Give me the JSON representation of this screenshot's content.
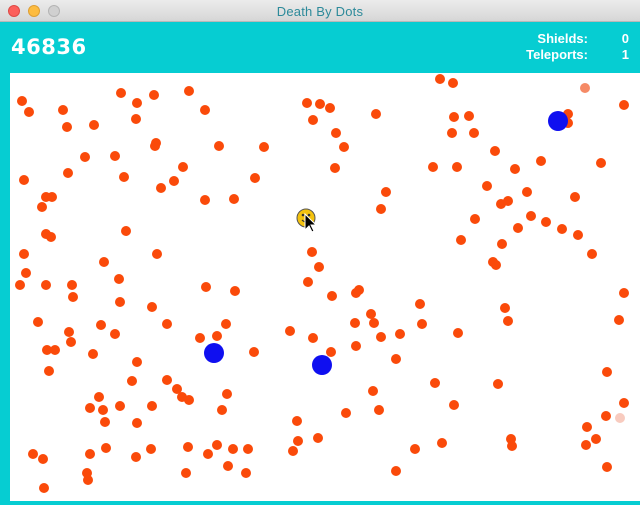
{
  "window": {
    "title": "Death By Dots"
  },
  "hud": {
    "score": "46836",
    "shields_label": "Shields:",
    "shields_value": "0",
    "teleports_label": "Teleports:",
    "teleports_value": "1"
  },
  "colors": {
    "hud_background": "#06cdd2",
    "enemy_dot": "#fa4a0a",
    "teleporter_dot": "#0f0ff0",
    "player": "#f4c20d",
    "playfield": "#ffffff"
  },
  "icons": {
    "player": "smiley-face-icon",
    "cursor": "mouse-pointer-icon"
  }
}
